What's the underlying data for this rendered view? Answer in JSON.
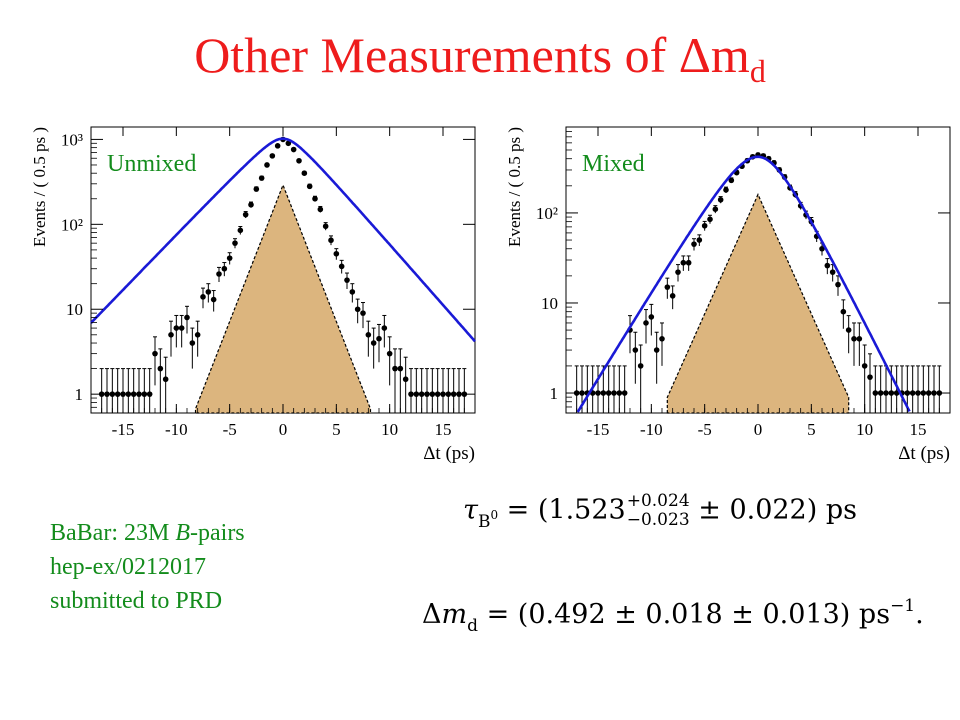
{
  "slide": {
    "title_main": "Other Measurements of Δm",
    "title_sub": "d"
  },
  "info": {
    "line1_prefix": "BaBar: 23M ",
    "line1_italic": "B",
    "line1_suffix": "-pairs",
    "line2": "hep-ex/0212017",
    "line3": "submitted to PRD"
  },
  "formulas": {
    "tau_symbol": "τ",
    "tau_sub": "B",
    "tau_sub_sup": "0",
    "tau_equals": "= (1.523",
    "tau_plus": "+0.024",
    "tau_minus": "−0.023",
    "tau_rest": "± 0.022) ps",
    "dm_prefix": "Δ",
    "dm_var": "m",
    "dm_sub": "d",
    "dm_rest": "= (0.492 ± 0.018 ± 0.013) ps",
    "dm_sup": "−1",
    "dm_end": "."
  },
  "colors": {
    "title": "#ee1c1c",
    "panel_label": "#138c1c",
    "fit_curve": "#1a1ad6",
    "background_fill": "#dcb57e",
    "points": "#000000"
  },
  "chart_data": [
    {
      "type": "scatter",
      "label": "Unmixed",
      "xlabel": "Δt (ps)",
      "ylabel": "Events / ( 0.5 ps )",
      "xlim": [
        -18,
        18
      ],
      "ylim": [
        0.6,
        1400
      ],
      "yscale": "log",
      "xticks": [
        -15,
        -10,
        -5,
        0,
        5,
        10,
        15
      ],
      "ytick_labels": [
        "1",
        "10",
        "10²",
        "10³"
      ],
      "ytick_values": [
        1,
        10,
        100,
        1000
      ],
      "fit": {
        "peak": 1020,
        "slope_left": 0.3,
        "slope_right": 0.33,
        "round_width": 1.4
      },
      "background": {
        "peak": 290,
        "slope": 0.74,
        "xmin": -8.2,
        "xmax": 8.2
      },
      "points": [
        [
          -17,
          1
        ],
        [
          -16.5,
          1
        ],
        [
          -16,
          1
        ],
        [
          -15.5,
          1
        ],
        [
          -15,
          1
        ],
        [
          -14.5,
          1
        ],
        [
          -14,
          1
        ],
        [
          -13.5,
          1
        ],
        [
          -13,
          1
        ],
        [
          -12.5,
          1
        ],
        [
          -12,
          3
        ],
        [
          -11.5,
          2
        ],
        [
          -11,
          1.5
        ],
        [
          -10.5,
          5
        ],
        [
          -10,
          6
        ],
        [
          -9.5,
          6
        ],
        [
          -9,
          8
        ],
        [
          -8.5,
          4
        ],
        [
          -8,
          5
        ],
        [
          -7.5,
          14
        ],
        [
          -7,
          16
        ],
        [
          -6.5,
          13
        ],
        [
          -6,
          26
        ],
        [
          -5.5,
          30
        ],
        [
          -5,
          40
        ],
        [
          -4.5,
          60
        ],
        [
          -4,
          85
        ],
        [
          -3.5,
          130
        ],
        [
          -3,
          170
        ],
        [
          -2.5,
          260
        ],
        [
          -2,
          350
        ],
        [
          -1.5,
          500
        ],
        [
          -1,
          640
        ],
        [
          -0.5,
          840
        ],
        [
          0,
          1000
        ],
        [
          0.5,
          900
        ],
        [
          1,
          760
        ],
        [
          1.5,
          560
        ],
        [
          2,
          400
        ],
        [
          2.5,
          280
        ],
        [
          3,
          200
        ],
        [
          3.5,
          150
        ],
        [
          4,
          95
        ],
        [
          4.5,
          65
        ],
        [
          5,
          45
        ],
        [
          5.5,
          32
        ],
        [
          6,
          22
        ],
        [
          6.5,
          16
        ],
        [
          7,
          10
        ],
        [
          7.5,
          9
        ],
        [
          8,
          5
        ],
        [
          8.5,
          4
        ],
        [
          9,
          4.5
        ],
        [
          9.5,
          6
        ],
        [
          10,
          3
        ],
        [
          10.5,
          2
        ],
        [
          11,
          2
        ],
        [
          11.5,
          1.5
        ],
        [
          12,
          1
        ],
        [
          12.5,
          1
        ],
        [
          13,
          1
        ],
        [
          13.5,
          1
        ],
        [
          14,
          1
        ],
        [
          14.5,
          1
        ],
        [
          15,
          1
        ],
        [
          15.5,
          1
        ],
        [
          16,
          1
        ],
        [
          16.5,
          1
        ],
        [
          17,
          1
        ]
      ]
    },
    {
      "type": "scatter",
      "label": "Mixed",
      "xlabel": "Δt (ps)",
      "ylabel": "Events / ( 0.5 ps )",
      "xlim": [
        -18,
        18
      ],
      "ylim": [
        0.6,
        900
      ],
      "yscale": "log",
      "xticks": [
        -15,
        -10,
        -5,
        0,
        5,
        10,
        15
      ],
      "ytick_labels": [
        "1",
        "10",
        "10²"
      ],
      "ytick_values": [
        1,
        10,
        100
      ],
      "fit": {
        "peak": 420,
        "slope_left": 0.45,
        "slope_right": 0.55,
        "round_width": 2.6
      },
      "background": {
        "peak": 160,
        "slope": 0.61,
        "xmin": -8.5,
        "xmax": 8.5
      },
      "points": [
        [
          -17,
          1
        ],
        [
          -16.5,
          1
        ],
        [
          -16,
          1
        ],
        [
          -15.5,
          1
        ],
        [
          -15,
          1
        ],
        [
          -14.5,
          1
        ],
        [
          -14,
          1
        ],
        [
          -13.5,
          1
        ],
        [
          -13,
          1
        ],
        [
          -12.5,
          1
        ],
        [
          -12,
          5
        ],
        [
          -11.5,
          3
        ],
        [
          -11,
          2
        ],
        [
          -10.5,
          6
        ],
        [
          -10,
          7
        ],
        [
          -9.5,
          3
        ],
        [
          -9,
          4
        ],
        [
          -8.5,
          15
        ],
        [
          -8,
          12
        ],
        [
          -7.5,
          22
        ],
        [
          -7,
          28
        ],
        [
          -6.5,
          28
        ],
        [
          -6,
          45
        ],
        [
          -5.5,
          50
        ],
        [
          -5,
          72
        ],
        [
          -4.5,
          85
        ],
        [
          -4,
          110
        ],
        [
          -3.5,
          140
        ],
        [
          -3,
          180
        ],
        [
          -2.5,
          230
        ],
        [
          -2,
          280
        ],
        [
          -1.5,
          330
        ],
        [
          -1,
          380
        ],
        [
          -0.5,
          420
        ],
        [
          0,
          440
        ],
        [
          0.5,
          430
        ],
        [
          1,
          400
        ],
        [
          1.5,
          360
        ],
        [
          2,
          300
        ],
        [
          2.5,
          250
        ],
        [
          3,
          190
        ],
        [
          3.5,
          160
        ],
        [
          4,
          120
        ],
        [
          4.5,
          95
        ],
        [
          5,
          80
        ],
        [
          5.5,
          55
        ],
        [
          6,
          40
        ],
        [
          6.5,
          26
        ],
        [
          7,
          22
        ],
        [
          7.5,
          16
        ],
        [
          8,
          8
        ],
        [
          8.5,
          5
        ],
        [
          9,
          4
        ],
        [
          9.5,
          4
        ],
        [
          10,
          2
        ],
        [
          10.5,
          1.5
        ],
        [
          11,
          1
        ],
        [
          11.5,
          1
        ],
        [
          12,
          1
        ],
        [
          12.5,
          1
        ],
        [
          13,
          1
        ],
        [
          13.5,
          1
        ],
        [
          14,
          1
        ],
        [
          14.5,
          1
        ],
        [
          15,
          1
        ],
        [
          15.5,
          1
        ],
        [
          16,
          1
        ],
        [
          16.5,
          1
        ],
        [
          17,
          1
        ]
      ]
    }
  ]
}
